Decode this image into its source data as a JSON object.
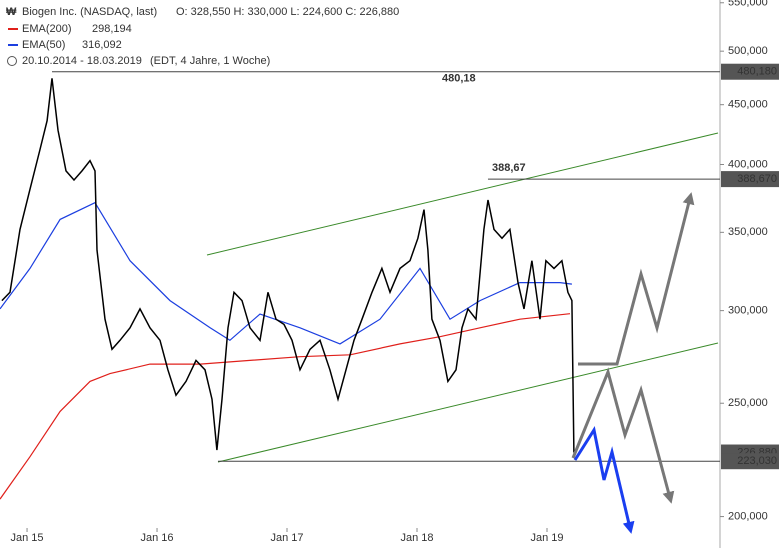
{
  "chart_data": {
    "type": "line",
    "header": "Biogen Inc. (NASDAQ, last)",
    "ohlc_text": "O: 328,550   H: 330,000   L: 224,600   C: 226,880",
    "period": "20.10.2014 - 18.03.2019",
    "period_note": "(EDT, 4 Jahre, 1 Woche)",
    "xlim": [
      2014.792,
      2020.331
    ],
    "xticks": [
      {
        "value": 2015,
        "label": "Jan 15"
      },
      {
        "value": 2016,
        "label": "Jan 16"
      },
      {
        "value": 2017,
        "label": "Jan 17"
      },
      {
        "value": 2018,
        "label": "Jan 18"
      },
      {
        "value": 2019,
        "label": "Jan 19"
      }
    ],
    "ylim": [
      188,
      553
    ],
    "log_scale": true,
    "yticks": [
      {
        "value": 200,
        "label": "200,000"
      },
      {
        "value": 250,
        "label": "250,000"
      },
      {
        "value": 300,
        "label": "300,000"
      },
      {
        "value": 350,
        "label": "350,000"
      },
      {
        "value": 400,
        "label": "400,000"
      },
      {
        "value": 450,
        "label": "450,000"
      },
      {
        "value": 500,
        "label": "500,000"
      },
      {
        "value": 550,
        "label": "550,000"
      }
    ],
    "series": [
      {
        "name": "Biogen Inc. (NASDAQ, last)",
        "color": "#000000",
        "x": [
          2014.807,
          2014.869,
          2014.946,
          2015.023,
          2015.1,
          2015.154,
          2015.192,
          2015.238,
          2015.3,
          2015.361,
          2015.423,
          2015.484,
          2015.523,
          2015.538,
          2015.6,
          2015.654,
          2015.715,
          2015.792,
          2015.869,
          2015.946,
          2016.023,
          2016.084,
          2016.146,
          2016.223,
          2016.3,
          2016.369,
          2016.423,
          2016.461,
          2016.5,
          2016.546,
          2016.592,
          2016.654,
          2016.715,
          2016.792,
          2016.854,
          2016.915,
          2016.977,
          2017.038,
          2017.1,
          2017.177,
          2017.254,
          2017.33,
          2017.392,
          2017.454,
          2017.515,
          2017.577,
          2017.654,
          2017.73,
          2017.792,
          2017.869,
          2017.946,
          2018.007,
          2018.054,
          2018.084,
          2018.115,
          2018.177,
          2018.238,
          2018.3,
          2018.346,
          2018.392,
          2018.454,
          2018.515,
          2018.546,
          2018.592,
          2018.654,
          2018.715,
          2018.777,
          2018.823,
          2018.884,
          2018.946,
          2018.992,
          2019.054,
          2019.115,
          2019.161,
          2019.192,
          2019.207
        ],
        "values": [
          306,
          311,
          352,
          381,
          412,
          436,
          474,
          428,
          395,
          388,
          395,
          403,
          395,
          338,
          295,
          278,
          283,
          290,
          301,
          290,
          283,
          267,
          254,
          261,
          272,
          267,
          252,
          228,
          252,
          290,
          311,
          306,
          290,
          283,
          311,
          295,
          292,
          283,
          267,
          278,
          283,
          267,
          252,
          267,
          283,
          295,
          311,
          326,
          311,
          326,
          331,
          346,
          366,
          338,
          295,
          283,
          261,
          267,
          290,
          301,
          295,
          352,
          373,
          352,
          346,
          352,
          317,
          301,
          331,
          295,
          331,
          326,
          331,
          311,
          306,
          226.88
        ]
      },
      {
        "name": "EMA(200)",
        "color": "#e0201b",
        "last_label": "298,194",
        "x": [
          2014.792,
          2015.023,
          2015.254,
          2015.484,
          2015.638,
          2015.946,
          2016.331,
          2016.715,
          2017.1,
          2017.485,
          2017.869,
          2018.177,
          2018.485,
          2018.792,
          2019.177
        ],
        "values": [
          207,
          225,
          246,
          261,
          265,
          270,
          270,
          272,
          274,
          275,
          281,
          285,
          290,
          295,
          298.194
        ]
      },
      {
        "name": "EMA(50)",
        "color": "#1c3fe0",
        "last_label": "316,092",
        "x": [
          2014.792,
          2015.023,
          2015.254,
          2015.523,
          2015.792,
          2016.1,
          2016.408,
          2016.561,
          2016.792,
          2017.1,
          2017.408,
          2017.715,
          2018.023,
          2018.254,
          2018.485,
          2018.792,
          2019.1,
          2019.192
        ],
        "values": [
          301,
          326,
          359,
          371,
          331,
          306,
          290,
          283,
          298,
          290,
          281,
          295,
          326,
          295,
          306,
          317,
          317,
          316.092
        ]
      }
    ],
    "levels": [
      {
        "value": 480.18,
        "label": "480,180",
        "note": "480,18",
        "from": 2015.192
      },
      {
        "value": 388.67,
        "label": "388,670",
        "note": "388,67",
        "from": 2018.546
      },
      {
        "value": 226.88,
        "label": "226,880"
      },
      {
        "value": 223.03,
        "label": "223,030",
        "from": 2016.469
      }
    ]
  }
}
